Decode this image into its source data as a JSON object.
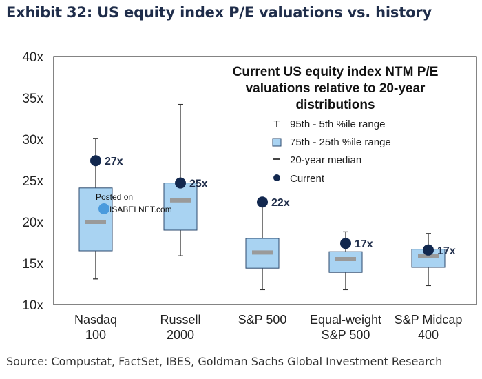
{
  "exhibit": {
    "title": "Exhibit 32: US equity index P/E valuations vs. history",
    "source": "Source: Compustat, FactSet, IBES, Goldman Sachs Global Investment Research"
  },
  "watermark": {
    "line1": "Posted on",
    "line2": "ISABELNET.com"
  },
  "colors": {
    "box_fill": "#a9d3f2",
    "box_stroke": "#2c4a6e",
    "median": "#9a9a9a",
    "current": "#12284f",
    "whisker": "#333333"
  },
  "chart_data": {
    "type": "boxplot",
    "title_lines": [
      "Current US equity index NTM P/E",
      "valuations relative to 20-year",
      "distributions"
    ],
    "ylim": [
      10,
      40
    ],
    "yticks": [
      10,
      15,
      20,
      25,
      30,
      35,
      40
    ],
    "ytick_labels": [
      "10x",
      "15x",
      "20x",
      "25x",
      "30x",
      "35x",
      "40x"
    ],
    "legend": {
      "whisker_symbol": "T",
      "whisker": "95th - 5th %ile range",
      "box": "75th - 25th %ile range",
      "median": "20-year median",
      "current": "Current"
    },
    "categories": [
      {
        "name": [
          "Nasdaq",
          "100"
        ],
        "p5": 13.1,
        "p25": 16.5,
        "median": 20.0,
        "p75": 24.1,
        "p95": 30.1,
        "current": 27.4,
        "current_label": "27x"
      },
      {
        "name": [
          "Russell",
          "2000"
        ],
        "p5": 15.9,
        "p25": 19.0,
        "median": 22.6,
        "p75": 24.7,
        "p95": 34.2,
        "current": 24.7,
        "current_label": "25x"
      },
      {
        "name": [
          "S&P 500",
          ""
        ],
        "p5": 11.8,
        "p25": 14.4,
        "median": 16.3,
        "p75": 18.0,
        "p95": 22.4,
        "current": 22.4,
        "current_label": "22x"
      },
      {
        "name": [
          "Equal-weight",
          "S&P 500"
        ],
        "p5": 11.8,
        "p25": 13.9,
        "median": 15.5,
        "p75": 16.4,
        "p95": 18.8,
        "current": 17.4,
        "current_label": "17x"
      },
      {
        "name": [
          "S&P Midcap",
          "400"
        ],
        "p5": 12.3,
        "p25": 14.5,
        "median": 15.9,
        "p75": 16.7,
        "p95": 18.6,
        "current": 16.6,
        "current_label": "17x"
      }
    ]
  }
}
